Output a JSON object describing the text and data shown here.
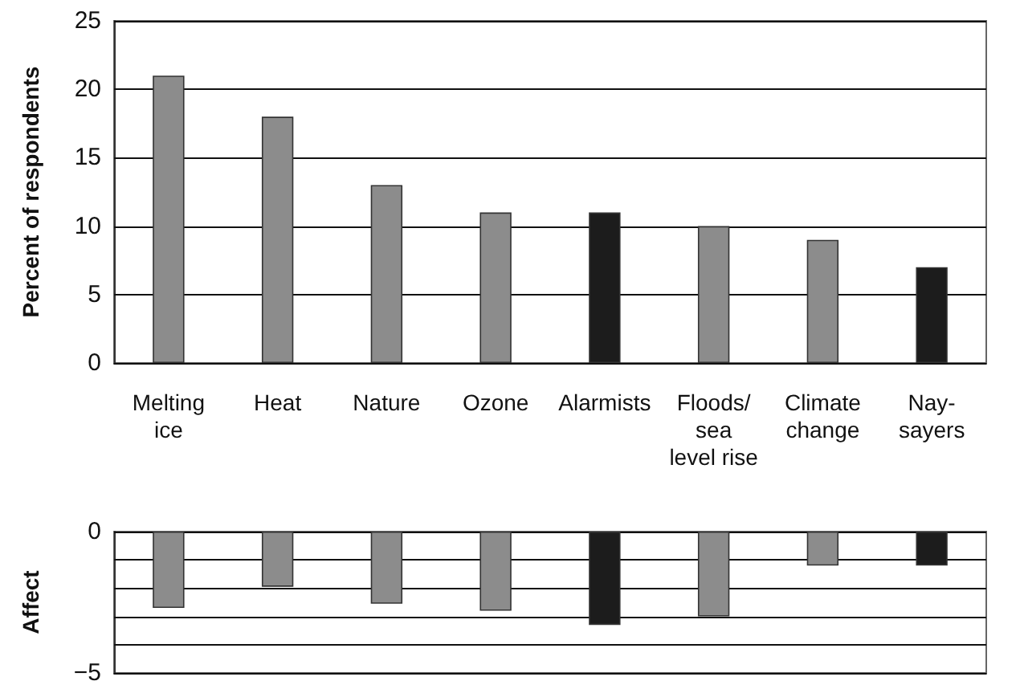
{
  "chart_data": [
    {
      "type": "bar",
      "ylabel": "Percent of respondents",
      "categories": [
        "Melting\nice",
        "Heat",
        "Nature",
        "Ozone",
        "Alarmists",
        "Floods/\nsea\nlevel rise",
        "Climate\nchange",
        "Nay-\nsayers"
      ],
      "values": [
        21,
        18,
        13,
        11,
        11,
        10,
        9,
        7
      ],
      "colors": [
        "#8c8c8c",
        "#8c8c8c",
        "#8c8c8c",
        "#8c8c8c",
        "#1c1c1c",
        "#8c8c8c",
        "#8c8c8c",
        "#1c1c1c"
      ],
      "ylim": [
        0,
        25
      ],
      "yticks": [
        0,
        5,
        10,
        15,
        20,
        25
      ],
      "grid": "y"
    },
    {
      "type": "bar",
      "ylabel": "Affect",
      "categories": [
        null,
        null,
        null,
        null,
        null,
        null,
        null,
        null
      ],
      "values": [
        -2.7,
        -1.95,
        -2.55,
        -2.8,
        -3.3,
        -3.0,
        -1.2,
        -1.2
      ],
      "colors": [
        "#8c8c8c",
        "#8c8c8c",
        "#8c8c8c",
        "#8c8c8c",
        "#1c1c1c",
        "#8c8c8c",
        "#8c8c8c",
        "#1c1c1c"
      ],
      "ylim": [
        -5,
        0
      ],
      "yticks": [
        {
          "value": -5,
          "label": "−5"
        },
        {
          "value": -4,
          "label": null
        },
        {
          "value": -3,
          "label": null
        },
        {
          "value": -2,
          "label": null
        },
        {
          "value": -1,
          "label": null
        },
        0
      ],
      "grid": "y",
      "tick_labels": "y"
    }
  ]
}
